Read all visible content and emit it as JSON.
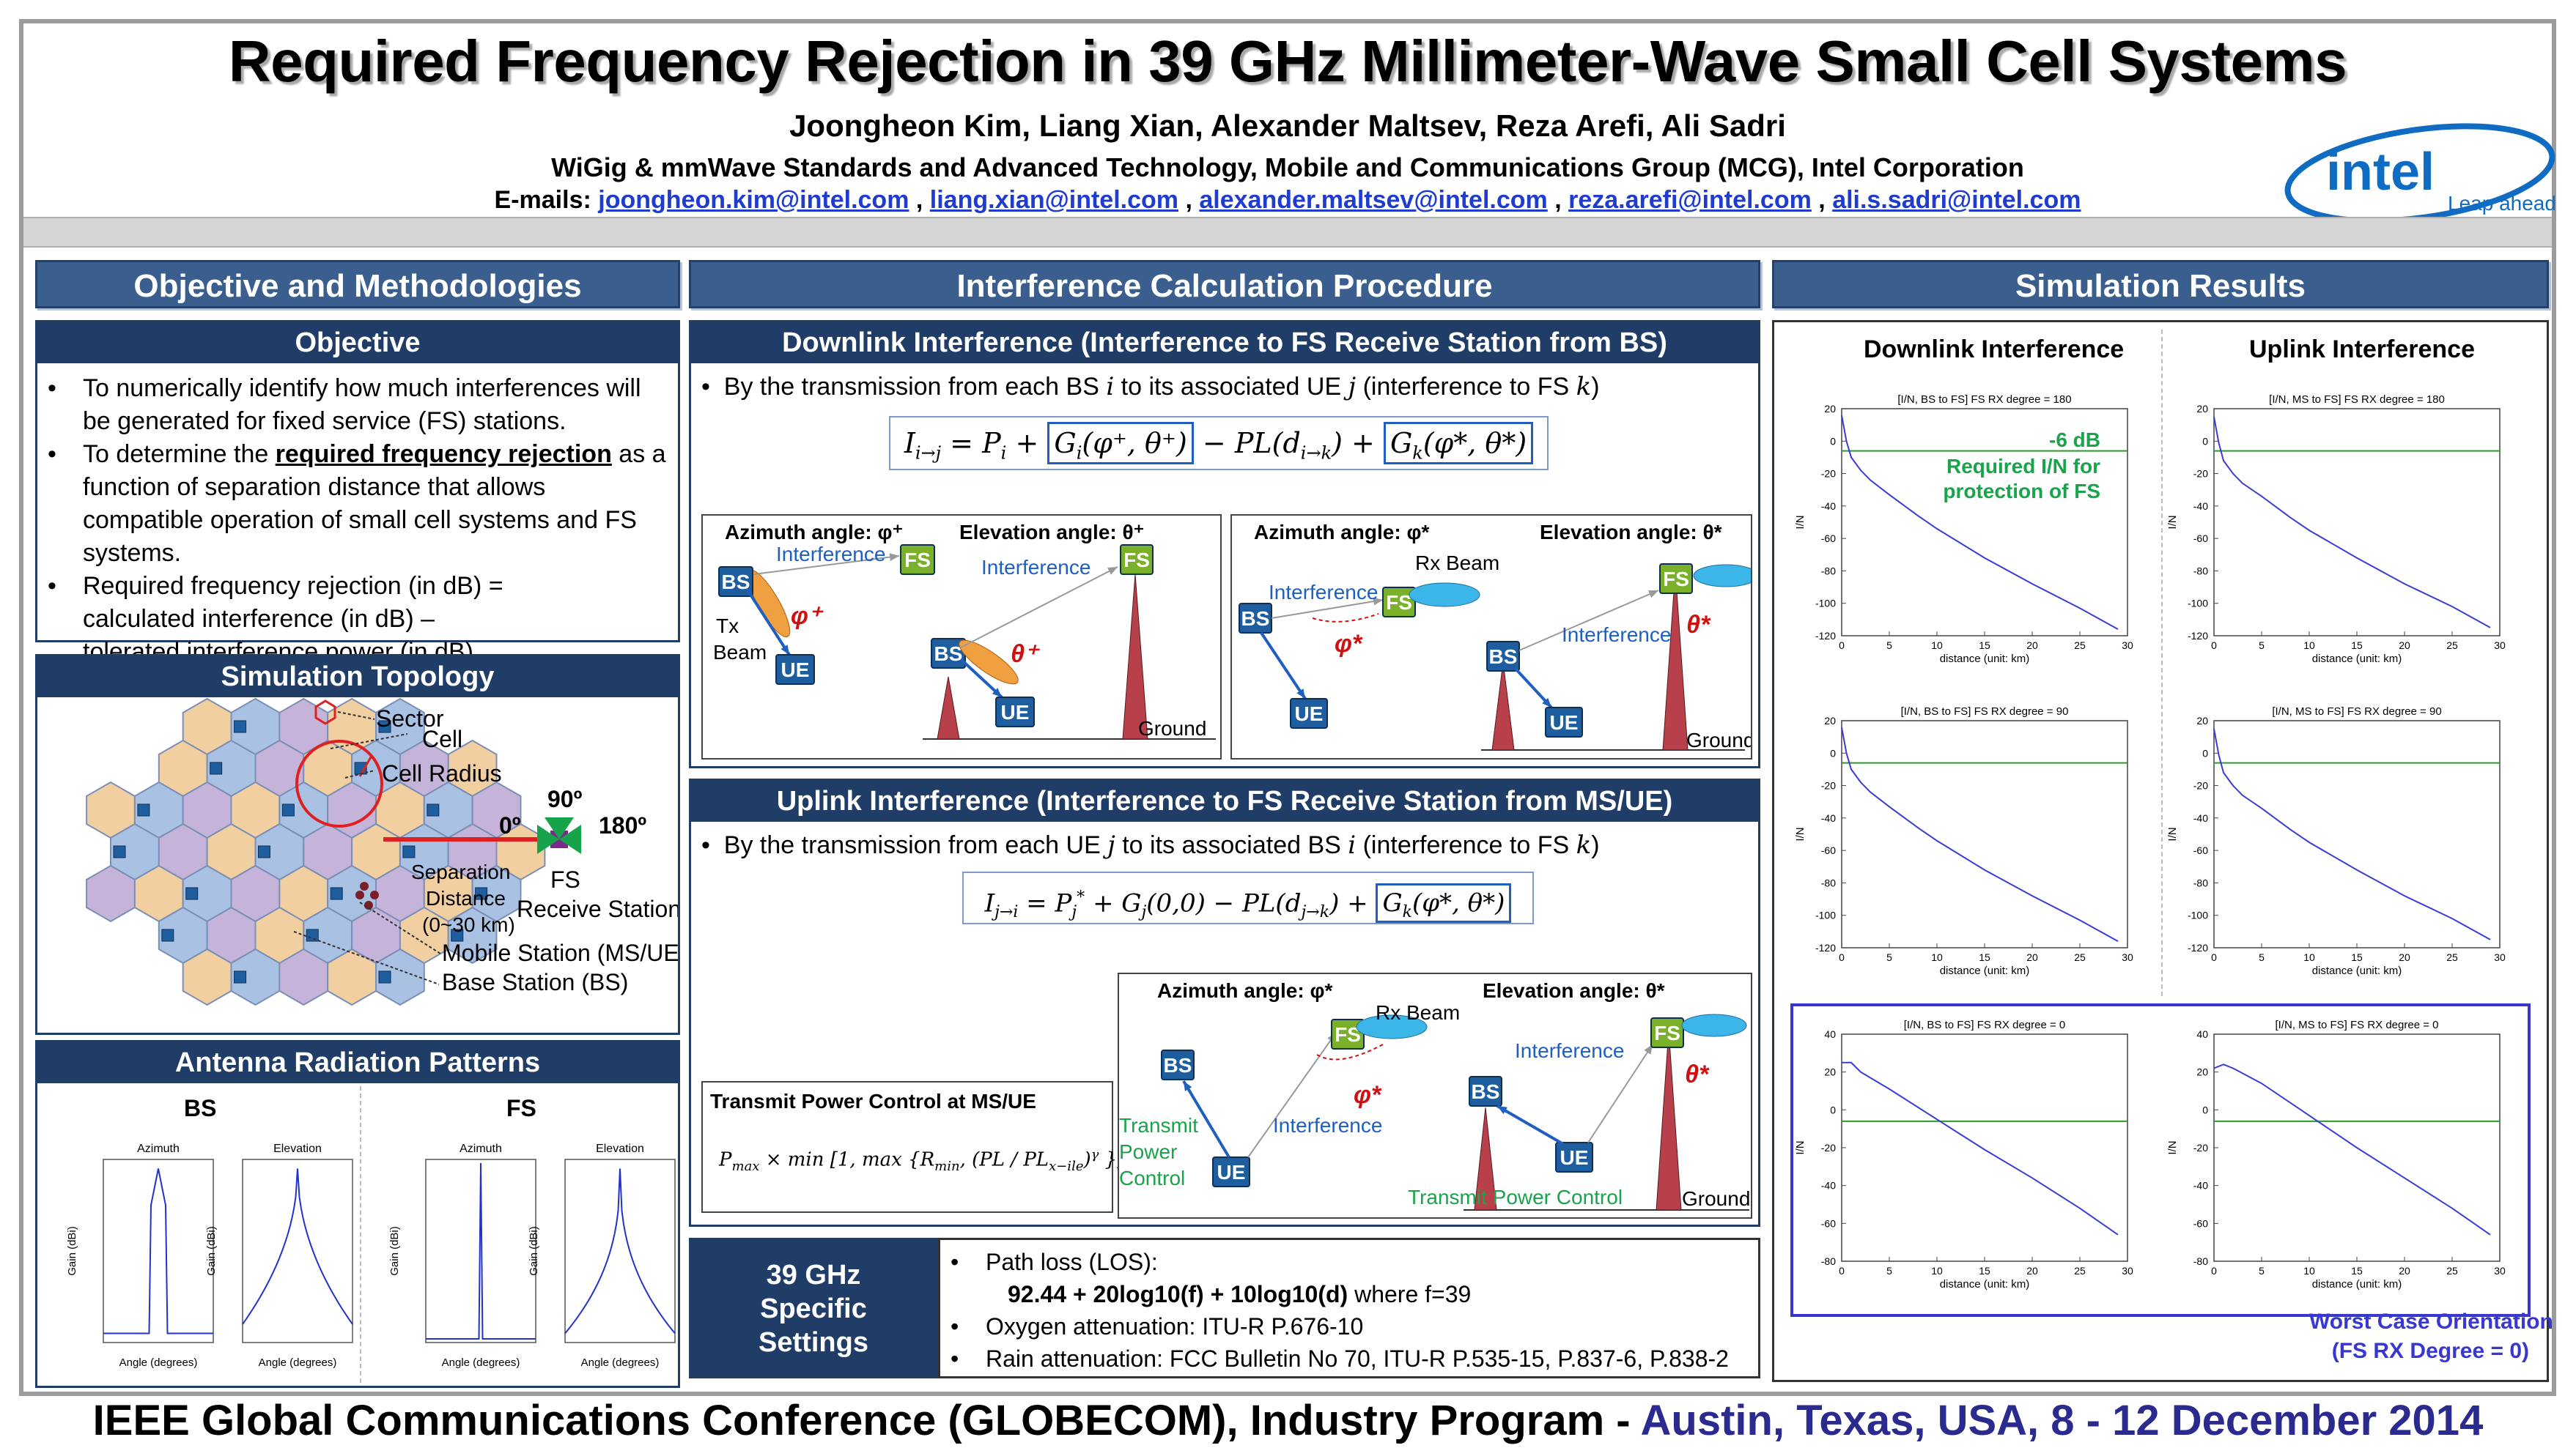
{
  "header": {
    "title": "Required Frequency Rejection in 39 GHz Millimeter-Wave Small Cell Systems",
    "authors": "Joongheon Kim, Liang Xian, Alexander Maltsev, Reza Arefi, Ali Sadri",
    "affiliation": "WiGig & mmWave Standards and Advanced Technology, Mobile and Communications Group (MCG), Intel Corporation",
    "emails_label": "E-mails:",
    "emails": [
      "joongheon.kim@intel.com",
      "liang.xian@intel.com",
      "alexander.maltsev@intel.com",
      "reza.arefi@intel.com",
      "ali.s.sadri@intel.com"
    ],
    "email_sep": ",",
    "logo_text": "intel",
    "logo_tagline": "Leap ahead"
  },
  "columns": {
    "left": "Objective and Methodologies",
    "middle": "Interference Calculation Procedure",
    "right": "Simulation Results"
  },
  "objective": {
    "title": "Objective",
    "b1": "To numerically identify how much interferences will be generated for fixed service (FS) stations.",
    "b2_pre": "To determine the ",
    "b2_em": "required frequency rejection",
    "b2_post": " as a function of separation distance that allows compatible operation of small cell systems and FS systems.",
    "b3_l1": "Required frequency rejection (in dB) =",
    "b3_l2": "calculated interference (in dB) –",
    "b3_l3": "tolerated interference power (in dB)"
  },
  "topology": {
    "title": "Simulation Topology",
    "sector": "Sector",
    "cell": "Cell",
    "cell_radius": "Cell Radius",
    "deg0": "0º",
    "deg90": "90º",
    "deg180": "180º",
    "sep1": "Separation",
    "sep2": "Distance",
    "sep3": "(0~30 km)",
    "fs1": "FS",
    "fs2": "Receive Station",
    "ms": "Mobile Station (MS/UE)",
    "bs": "Base Station (BS)"
  },
  "antenna": {
    "title": "Antenna Radiation Patterns",
    "bs": "BS",
    "fs": "FS",
    "azimuth": "Azimuth",
    "elevation": "Elevation",
    "ylabel": "Gain (dBi)",
    "xlabel": "Angle (degrees)"
  },
  "downlink": {
    "title": "Downlink Interference (Interference to FS Receive Station from BS)",
    "bullet_pre": "By the transmission from each BS ",
    "bullet_i": "i",
    "bullet_mid": " to its associated UE ",
    "bullet_j": "j",
    "bullet_post": " (interference to FS ",
    "bullet_k": "k",
    "bullet_end": ")",
    "eq_a": "I",
    "eq_a_sub": "i→j",
    "eq_b": " = P",
    "eq_b_sub": "i",
    "eq_c": " + ",
    "eq_g1": "G",
    "eq_g1_sub": "i",
    "eq_g1_arg": "(φ⁺, θ⁺)",
    "eq_d": " − PL(d",
    "eq_d_sub": "i→k",
    "eq_d2": ") + ",
    "eq_g2": "G",
    "eq_g2_sub": "k",
    "eq_g2_arg": "(φ*, θ*)",
    "az_plus": "Azimuth angle: φ⁺",
    "el_plus": "Elevation angle: θ⁺",
    "az_star": "Azimuth angle: φ*",
    "el_star": "Elevation angle: θ*",
    "interference": "Interference",
    "tx1": "Tx",
    "tx2": "Beam",
    "rx_beam": "Rx Beam",
    "ground": "Ground",
    "phi_plus": "φ⁺",
    "theta_plus": "θ⁺",
    "phi_star": "φ*",
    "theta_star": "θ*",
    "bs": "BS",
    "ue": "UE",
    "fs": "FS"
  },
  "uplink": {
    "title": "Uplink Interference (Interference to FS Receive Station from MS/UE)",
    "bullet_pre": "By the transmission from each UE ",
    "bullet_j": "j",
    "bullet_mid": " to its associated BS ",
    "bullet_i": "i",
    "bullet_post": " (interference to FS ",
    "bullet_k": "k",
    "bullet_end": ")",
    "eq_a": "I",
    "eq_a_sub": "j→i",
    "eq_b": " = P",
    "eq_b_sub": "j",
    "eq_b_sup": "*",
    "eq_c": " + G",
    "eq_c_sub": "j",
    "eq_c_arg": "(0,0) − PL(d",
    "eq_d_sub": "j→k",
    "eq_d2": ") + ",
    "eq_g2": "G",
    "eq_g2_sub": "k",
    "eq_g2_arg": "(φ*, θ*)",
    "tpc_title": "Transmit Power Control at MS/UE",
    "tpc_eq1": "P",
    "tpc_eq1_sub": "max",
    "tpc_eq2": " × min [1, max {R",
    "tpc_eq2_sub": "min",
    "tpc_eq3": ", (PL / PL",
    "tpc_eq3_sub": "x−ile",
    "tpc_eq4": ")",
    "tpc_eq4_sup": "γ",
    "tpc_eq5": " }]",
    "az_star": "Azimuth angle: φ*",
    "el_star": "Elevation angle: θ*",
    "rx_beam": "Rx Beam",
    "interference": "Interference",
    "tpc1": "Transmit",
    "tpc2": "Power",
    "tpc3": "Control",
    "tpc_long": "Transmit Power Control",
    "ground": "Ground",
    "phi_star": "φ*",
    "theta_star": "θ*",
    "bs": "BS",
    "ue": "UE",
    "fs": "FS"
  },
  "settings": {
    "title1": "39 GHz",
    "title2": "Specific",
    "title3": "Settings",
    "b1": "Path loss (LOS):",
    "b1_eq": "92.44 + 20log10(f) + 10log10(d)",
    "b1_post": " where f=39",
    "b2": "Oxygen attenuation: ITU-R P.676-10",
    "b3": "Rain attenuation: FCC Bulletin No 70, ITU-R P.535-15, P.837-6, P.838-2"
  },
  "results": {
    "dl_title": "Downlink Interference",
    "ul_title": "Uplink Interference",
    "annot1": "-6 dB",
    "annot2": "Required I/N for",
    "annot3": "protection of FS",
    "worst1": "Worst Case Orientation",
    "worst2": "(FS RX Degree = 0)",
    "xlabel": "distance (unit: km)",
    "ylabel": "I/N",
    "colors": {
      "curve": "#3b3bd8",
      "threshold": "#2a9a2a",
      "highlight": "#3838d0"
    }
  },
  "chart_data": [
    {
      "type": "line",
      "title": "[I/N, BS to FS] FS RX degree = 180",
      "xlabel": "distance (unit: km)",
      "ylabel": "I/N",
      "xlim": [
        0,
        30
      ],
      "ylim": [
        -120,
        20
      ],
      "yticks": [
        20,
        0,
        -20,
        -40,
        -60,
        -80,
        -100,
        -120
      ],
      "xticks": [
        0,
        5,
        10,
        15,
        20,
        25,
        30
      ],
      "x": [
        0,
        0.5,
        1,
        2,
        3,
        5,
        8,
        10,
        15,
        20,
        25,
        29
      ],
      "y": [
        16,
        0,
        -10,
        -18,
        -24,
        -33,
        -46,
        -54,
        -72,
        -88,
        -103,
        -116
      ],
      "threshold": -6
    },
    {
      "type": "line",
      "title": "[I/N, MS to FS] FS RX degree = 180",
      "xlabel": "distance (unit: km)",
      "ylabel": "I/N",
      "xlim": [
        0,
        30
      ],
      "ylim": [
        -120,
        20
      ],
      "yticks": [
        20,
        0,
        -20,
        -40,
        -60,
        -80,
        -100,
        -120
      ],
      "xticks": [
        0,
        5,
        10,
        15,
        20,
        25,
        30
      ],
      "x": [
        0,
        0.5,
        1,
        2,
        3,
        5,
        8,
        10,
        15,
        20,
        25,
        29
      ],
      "y": [
        15,
        -1,
        -12,
        -20,
        -26,
        -34,
        -47,
        -55,
        -72,
        -88,
        -102,
        -115
      ],
      "threshold": -6
    },
    {
      "type": "line",
      "title": "[I/N, BS to FS] FS RX degree = 90",
      "xlabel": "distance (unit: km)",
      "ylabel": "I/N",
      "xlim": [
        0,
        30
      ],
      "ylim": [
        -120,
        20
      ],
      "yticks": [
        20,
        0,
        -20,
        -40,
        -60,
        -80,
        -100,
        -120
      ],
      "xticks": [
        0,
        5,
        10,
        15,
        20,
        25,
        30
      ],
      "x": [
        0,
        0.5,
        1,
        2,
        3,
        5,
        8,
        10,
        15,
        20,
        25,
        29
      ],
      "y": [
        16,
        0,
        -10,
        -18,
        -24,
        -33,
        -46,
        -54,
        -72,
        -88,
        -103,
        -116
      ],
      "threshold": -6
    },
    {
      "type": "line",
      "title": "[I/N, MS to FS] FS RX degree = 90",
      "xlabel": "distance (unit: km)",
      "ylabel": "I/N",
      "xlim": [
        0,
        30
      ],
      "ylim": [
        -120,
        20
      ],
      "yticks": [
        20,
        0,
        -20,
        -40,
        -60,
        -80,
        -100,
        -120
      ],
      "xticks": [
        0,
        5,
        10,
        15,
        20,
        25,
        30
      ],
      "x": [
        0,
        0.5,
        1,
        2,
        3,
        5,
        8,
        10,
        15,
        20,
        25,
        29
      ],
      "y": [
        15,
        -1,
        -12,
        -20,
        -26,
        -34,
        -47,
        -55,
        -72,
        -88,
        -102,
        -115
      ],
      "threshold": -6
    },
    {
      "type": "line",
      "title": "[I/N, BS to FS] FS RX degree = 0",
      "xlabel": "distance (unit: km)",
      "ylabel": "I/N",
      "xlim": [
        0,
        30
      ],
      "ylim": [
        -80,
        40
      ],
      "yticks": [
        40,
        20,
        0,
        -20,
        -40,
        -60,
        -80
      ],
      "xticks": [
        0,
        5,
        10,
        15,
        20,
        25,
        30
      ],
      "x": [
        0,
        1,
        2,
        5,
        10,
        15,
        20,
        25,
        29
      ],
      "y": [
        25,
        25,
        20,
        11,
        -5,
        -21,
        -36,
        -52,
        -66
      ],
      "threshold": -6
    },
    {
      "type": "line",
      "title": "[I/N, MS to FS] FS RX degree = 0",
      "xlabel": "distance (unit: km)",
      "ylabel": "I/N",
      "xlim": [
        0,
        30
      ],
      "ylim": [
        -80,
        40
      ],
      "yticks": [
        40,
        20,
        0,
        -20,
        -40,
        -60,
        -80
      ],
      "xticks": [
        0,
        5,
        10,
        15,
        20,
        25,
        30
      ],
      "x": [
        0,
        1,
        2,
        5,
        10,
        15,
        20,
        25,
        29
      ],
      "y": [
        22,
        24,
        22,
        14,
        -3,
        -20,
        -36,
        -52,
        -66
      ],
      "threshold": -6
    }
  ],
  "footer": {
    "conf": "IEEE Global Communications Conference (GLOBECOM), Industry Program - ",
    "place": "Austin, Texas, USA, 8 - 12 December 2014"
  }
}
